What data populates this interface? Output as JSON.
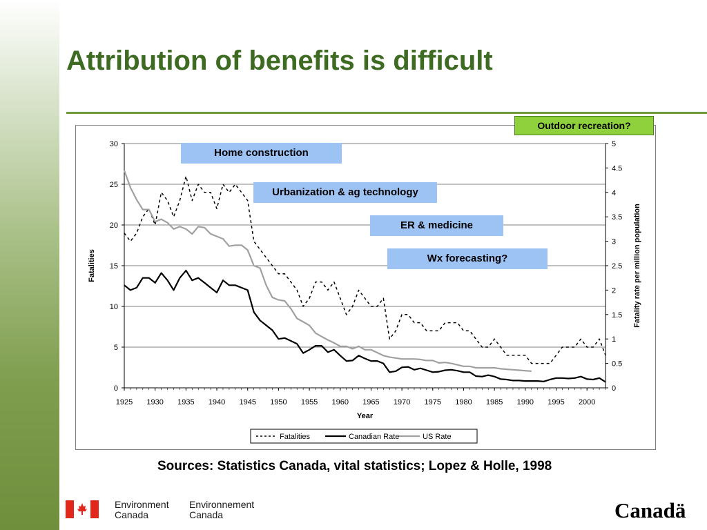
{
  "slide": {
    "title": "Attribution of benefits is difficult",
    "sources": "Sources: Statistics Canada, vital statistics; Lopez & Holle, 1998",
    "colors": {
      "title": "#3d6b21",
      "rule": "#6f9a3a",
      "note_blue": "#9dc3f5",
      "note_green": "#8fd13c"
    }
  },
  "annotations": {
    "outdoor": "Outdoor recreation?",
    "home": "Home construction",
    "urban": "Urbanization & ag technology",
    "er": "ER & medicine",
    "wx": "Wx forecasting?"
  },
  "footer": {
    "dept_en_line1": "Environment",
    "dept_en_line2": "Canada",
    "dept_fr_line1": "Environnement",
    "dept_fr_line2": "Canada",
    "wordmark": "Canadä",
    "flag_icon": "canada-flag-icon"
  },
  "chart_data": {
    "type": "line",
    "xlabel": "Year",
    "ylabel": "Fatalities",
    "y2label": "Fatality rate per million population",
    "xlim": [
      1925,
      2003
    ],
    "ylim": [
      0,
      30
    ],
    "y2lim": [
      0,
      5
    ],
    "grid": "horizontal",
    "legend": "bottom",
    "x_ticks": [
      1925,
      1930,
      1935,
      1940,
      1945,
      1950,
      1955,
      1960,
      1965,
      1970,
      1975,
      1980,
      1985,
      1990,
      1995,
      2000
    ],
    "y_ticks": [
      0,
      5,
      10,
      15,
      20,
      25,
      30
    ],
    "y2_ticks": [
      "0",
      "0.5",
      "1",
      "1.5",
      "2",
      "2.5",
      "3",
      "3.5",
      "4",
      "4.5",
      "5"
    ],
    "series": [
      {
        "name": "Fatalities",
        "axis": "left",
        "style": "dashed",
        "color": "#000000",
        "x": [
          1925,
          1926,
          1927,
          1928,
          1929,
          1930,
          1931,
          1932,
          1933,
          1934,
          1935,
          1936,
          1937,
          1938,
          1939,
          1940,
          1941,
          1942,
          1943,
          1944,
          1945,
          1946,
          1947,
          1948,
          1949,
          1950,
          1951,
          1952,
          1953,
          1954,
          1955,
          1956,
          1957,
          1958,
          1959,
          1960,
          1961,
          1962,
          1963,
          1964,
          1965,
          1966,
          1967,
          1968,
          1969,
          1970,
          1971,
          1972,
          1973,
          1974,
          1975,
          1976,
          1977,
          1978,
          1979,
          1980,
          1981,
          1982,
          1983,
          1984,
          1985,
          1986,
          1987,
          1988,
          1989,
          1990,
          1991,
          1992,
          1993,
          1994,
          1995,
          1996,
          1997,
          1998,
          1999,
          2000,
          2001,
          2002,
          2003
        ],
        "values": [
          19,
          18,
          19,
          21,
          22,
          20,
          24,
          23,
          21,
          23,
          26,
          23,
          25,
          24,
          24,
          22,
          25,
          24,
          25,
          24,
          23,
          18,
          17,
          16,
          15,
          14,
          14,
          13,
          12,
          10,
          11,
          13,
          13,
          12,
          13,
          11,
          9,
          10,
          12,
          11,
          10,
          10,
          11,
          6,
          7,
          9,
          9,
          8,
          8,
          7,
          7,
          7,
          8,
          8,
          8,
          7,
          7,
          6,
          5,
          5,
          6,
          5,
          4,
          4,
          4,
          4,
          3,
          3,
          3,
          3,
          4,
          5,
          5,
          5,
          6,
          5,
          5,
          6,
          4
        ]
      },
      {
        "name": "Canadian Rate",
        "axis": "right",
        "style": "solid",
        "color": "#000000",
        "x": [
          1925,
          1926,
          1927,
          1928,
          1929,
          1930,
          1931,
          1932,
          1933,
          1934,
          1935,
          1936,
          1937,
          1938,
          1939,
          1940,
          1941,
          1942,
          1943,
          1944,
          1945,
          1946,
          1947,
          1948,
          1949,
          1950,
          1951,
          1952,
          1953,
          1954,
          1955,
          1956,
          1957,
          1958,
          1959,
          1960,
          1961,
          1962,
          1963,
          1964,
          1965,
          1966,
          1967,
          1968,
          1969,
          1970,
          1971,
          1972,
          1973,
          1974,
          1975,
          1976,
          1977,
          1978,
          1979,
          1980,
          1981,
          1982,
          1983,
          1984,
          1985,
          1986,
          1987,
          1988,
          1989,
          1990,
          1991,
          1992,
          1993,
          1994,
          1995,
          1996,
          1997,
          1998,
          1999,
          2000,
          2001,
          2002,
          2003
        ],
        "values": [
          2.1,
          2.0,
          2.05,
          2.25,
          2.25,
          2.15,
          2.35,
          2.2,
          2.0,
          2.25,
          2.4,
          2.2,
          2.25,
          2.15,
          2.05,
          1.95,
          2.2,
          2.1,
          2.1,
          2.05,
          2.0,
          1.55,
          1.38,
          1.28,
          1.18,
          1.0,
          1.02,
          0.96,
          0.9,
          0.71,
          0.78,
          0.86,
          0.86,
          0.73,
          0.78,
          0.66,
          0.55,
          0.56,
          0.66,
          0.6,
          0.55,
          0.55,
          0.5,
          0.32,
          0.34,
          0.42,
          0.43,
          0.37,
          0.4,
          0.36,
          0.32,
          0.33,
          0.36,
          0.37,
          0.35,
          0.32,
          0.32,
          0.24,
          0.23,
          0.26,
          0.23,
          0.18,
          0.17,
          0.15,
          0.15,
          0.14,
          0.14,
          0.14,
          0.13,
          0.17,
          0.2,
          0.2,
          0.19,
          0.2,
          0.23,
          0.18,
          0.17,
          0.2,
          0.12
        ]
      },
      {
        "name": "US Rate",
        "axis": "right",
        "style": "solid",
        "color": "#a0a0a0",
        "x": [
          1925,
          1926,
          1927,
          1928,
          1929,
          1930,
          1931,
          1932,
          1933,
          1934,
          1935,
          1936,
          1937,
          1938,
          1939,
          1940,
          1941,
          1942,
          1943,
          1944,
          1945,
          1946,
          1947,
          1948,
          1949,
          1950,
          1951,
          1952,
          1953,
          1954,
          1955,
          1956,
          1957,
          1958,
          1959,
          1960,
          1961,
          1962,
          1963,
          1964,
          1965,
          1966,
          1967,
          1968,
          1969,
          1970,
          1971,
          1972,
          1973,
          1974,
          1975,
          1976,
          1977,
          1978,
          1979,
          1980,
          1981,
          1982,
          1983,
          1984,
          1985,
          1986,
          1987,
          1988,
          1989,
          1990,
          1991
        ],
        "values": [
          4.45,
          4.1,
          3.85,
          3.65,
          3.65,
          3.4,
          3.45,
          3.38,
          3.25,
          3.3,
          3.25,
          3.15,
          3.3,
          3.28,
          3.15,
          3.1,
          3.05,
          2.9,
          2.92,
          2.92,
          2.82,
          2.5,
          2.45,
          2.1,
          1.85,
          1.8,
          1.78,
          1.62,
          1.42,
          1.35,
          1.28,
          1.12,
          1.05,
          0.98,
          0.92,
          0.85,
          0.85,
          0.8,
          0.85,
          0.78,
          0.78,
          0.72,
          0.66,
          0.63,
          0.61,
          0.59,
          0.59,
          0.59,
          0.58,
          0.56,
          0.56,
          0.51,
          0.52,
          0.5,
          0.47,
          0.44,
          0.44,
          0.41,
          0.41,
          0.41,
          0.41,
          0.39,
          0.38,
          0.37,
          0.36,
          0.35,
          0.34
        ]
      }
    ]
  }
}
